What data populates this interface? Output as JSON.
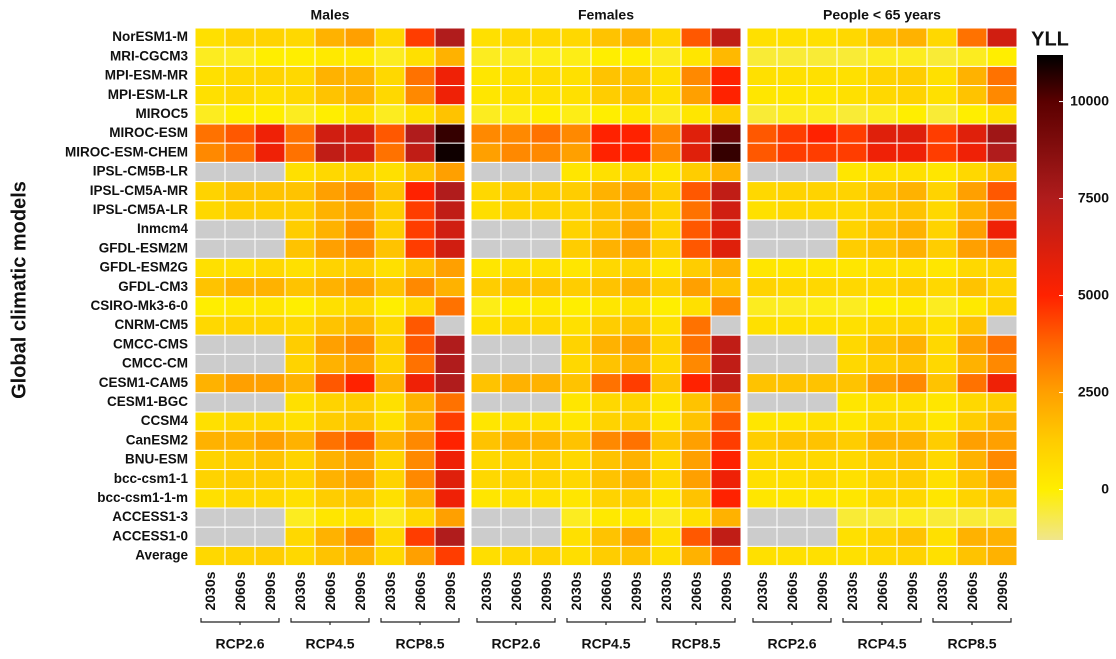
{
  "chart_data": {
    "type": "heatmap",
    "y_label": "Global climatic models",
    "rows": [
      "NorESM1-M",
      "MRI-CGCM3",
      "MPI-ESM-MR",
      "MPI-ESM-LR",
      "MIROC5",
      "MIROC-ESM",
      "MIROC-ESM-CHEM",
      "IPSL-CM5B-LR",
      "IPSL-CM5A-MR",
      "IPSL-CM5A-LR",
      "Inmcm4",
      "GFDL-ESM2M",
      "GFDL-ESM2G",
      "GFDL-CM3",
      "CSIRO-Mk3-6-0",
      "CNRM-CM5",
      "CMCC-CMS",
      "CMCC-CM",
      "CESM1-CAM5",
      "CESM1-BGC",
      "CCSM4",
      "CanESM2",
      "BNU-ESM",
      "bcc-csm1-1",
      "bcc-csm1-1-m",
      "ACCESS1-3",
      "ACCESS1-0",
      "Average"
    ],
    "colorbar_title": "YLL",
    "zlim": [
      -1300,
      11200
    ],
    "zticks": [
      0,
      2500,
      5000,
      7500,
      10000
    ],
    "missing_color": "#cccccc",
    "colorscale": [
      [
        -1300,
        "#f0e68c"
      ],
      [
        0,
        "#ffee00"
      ],
      [
        1250,
        "#ffcc00"
      ],
      [
        2500,
        "#ffa000"
      ],
      [
        3750,
        "#ff6600"
      ],
      [
        5000,
        "#ff2200"
      ],
      [
        7500,
        "#b01c1c"
      ],
      [
        10000,
        "#5a0000"
      ],
      [
        11200,
        "#000000"
      ]
    ],
    "panels": [
      {
        "title": "Males",
        "columns": [
          "2030s",
          "2060s",
          "2090s",
          "2030s",
          "2060s",
          "2090s",
          "2030s",
          "2060s",
          "2090s"
        ],
        "groups": [
          "RCP2.6",
          "RCP4.5",
          "RCP8.5"
        ],
        "values": [
          [
            500,
            1000,
            1000,
            800,
            2000,
            2500,
            800,
            4500,
            7500
          ],
          [
            -300,
            -300,
            0,
            0,
            200,
            200,
            -300,
            500,
            2000
          ],
          [
            500,
            800,
            1000,
            800,
            2000,
            2000,
            800,
            3500,
            5500
          ],
          [
            500,
            800,
            500,
            800,
            1500,
            2000,
            800,
            3000,
            5500
          ],
          [
            -300,
            0,
            0,
            -300,
            0,
            500,
            -300,
            500,
            1500
          ],
          [
            3500,
            4000,
            5500,
            3500,
            6500,
            6500,
            4000,
            7500,
            10500
          ],
          [
            3000,
            3500,
            5500,
            3500,
            7000,
            6500,
            3500,
            7000,
            11000
          ],
          [
            null,
            null,
            null,
            500,
            800,
            1000,
            500,
            1500,
            2500
          ],
          [
            1000,
            1500,
            1500,
            1500,
            2500,
            3000,
            1500,
            5000,
            7500
          ],
          [
            800,
            1200,
            1200,
            1200,
            2000,
            2500,
            1200,
            4500,
            7000
          ],
          [
            null,
            null,
            null,
            1200,
            2000,
            3000,
            1200,
            4500,
            6500
          ],
          [
            null,
            null,
            null,
            1500,
            2500,
            3000,
            1500,
            4500,
            6500
          ],
          [
            500,
            500,
            800,
            500,
            1000,
            1200,
            500,
            1500,
            2500
          ],
          [
            1500,
            2000,
            2000,
            1500,
            2000,
            2500,
            1500,
            3000,
            2000
          ],
          [
            0,
            200,
            300,
            0,
            500,
            800,
            0,
            800,
            3500
          ],
          [
            800,
            1000,
            1000,
            800,
            1500,
            2000,
            800,
            4000,
            null
          ],
          [
            null,
            null,
            null,
            1200,
            2500,
            3000,
            1200,
            4000,
            7500
          ],
          [
            null,
            null,
            null,
            1000,
            2000,
            2500,
            1000,
            3500,
            7500
          ],
          [
            2000,
            2500,
            2500,
            2000,
            4000,
            5000,
            2000,
            5500,
            7500
          ],
          [
            null,
            null,
            null,
            500,
            1000,
            1200,
            500,
            2000,
            3500
          ],
          [
            500,
            800,
            800,
            500,
            1200,
            1500,
            500,
            2000,
            4500
          ],
          [
            2000,
            2000,
            2500,
            2000,
            3500,
            4000,
            2000,
            3000,
            5000
          ],
          [
            1000,
            1200,
            1500,
            1000,
            2000,
            2500,
            1000,
            3000,
            5500
          ],
          [
            1000,
            1200,
            1200,
            1000,
            2000,
            2500,
            1000,
            3000,
            6000
          ],
          [
            500,
            800,
            800,
            500,
            1200,
            1500,
            500,
            2000,
            5500
          ],
          [
            null,
            null,
            null,
            -300,
            300,
            500,
            -300,
            800,
            2500
          ],
          [
            null,
            null,
            null,
            800,
            2000,
            3000,
            800,
            4500,
            7500
          ],
          [
            800,
            1000,
            1200,
            800,
            1500,
            2000,
            800,
            2500,
            4500
          ]
        ]
      },
      {
        "title": "Females",
        "columns": [
          "2030s",
          "2060s",
          "2090s",
          "2030s",
          "2060s",
          "2090s",
          "2030s",
          "2060s",
          "2090s"
        ],
        "groups": [
          "RCP2.6",
          "RCP4.5",
          "RCP8.5"
        ],
        "values": [
          [
            500,
            800,
            800,
            800,
            1500,
            2000,
            800,
            4000,
            7000
          ],
          [
            -300,
            -300,
            -200,
            -200,
            0,
            0,
            -300,
            300,
            1800
          ],
          [
            300,
            500,
            700,
            500,
            1500,
            1500,
            500,
            3000,
            5000
          ],
          [
            300,
            500,
            500,
            500,
            1200,
            1500,
            500,
            2500,
            5000
          ],
          [
            -300,
            -200,
            0,
            -200,
            0,
            300,
            -300,
            300,
            1200
          ],
          [
            3000,
            3000,
            3500,
            3000,
            5000,
            5000,
            3000,
            6000,
            9500
          ],
          [
            2500,
            3000,
            3000,
            2500,
            5000,
            5000,
            3000,
            6000,
            10500
          ],
          [
            null,
            null,
            null,
            300,
            500,
            800,
            300,
            1200,
            2000
          ],
          [
            800,
            1200,
            1200,
            1200,
            2000,
            2500,
            1200,
            4000,
            7000
          ],
          [
            600,
            1000,
            1000,
            1000,
            1500,
            2000,
            1000,
            3500,
            6500
          ],
          [
            null,
            null,
            null,
            1000,
            1500,
            2500,
            1000,
            4000,
            6000
          ],
          [
            null,
            null,
            null,
            1200,
            2000,
            2500,
            1200,
            4000,
            6000
          ],
          [
            300,
            500,
            500,
            300,
            800,
            1000,
            300,
            1200,
            2000
          ],
          [
            1200,
            1500,
            1500,
            1200,
            1500,
            2000,
            1200,
            2500,
            1500
          ],
          [
            -200,
            0,
            200,
            0,
            300,
            500,
            0,
            500,
            3000
          ],
          [
            500,
            800,
            800,
            500,
            1200,
            1500,
            500,
            3500,
            null
          ],
          [
            null,
            null,
            null,
            1000,
            2000,
            2500,
            1000,
            3500,
            7000
          ],
          [
            null,
            null,
            null,
            800,
            1500,
            2000,
            800,
            3000,
            7000
          ],
          [
            1500,
            2000,
            2000,
            1500,
            3500,
            4500,
            1500,
            5000,
            7000
          ],
          [
            null,
            null,
            null,
            300,
            800,
            1000,
            300,
            1500,
            3000
          ],
          [
            300,
            500,
            500,
            300,
            1000,
            1200,
            300,
            1500,
            4000
          ],
          [
            1500,
            2000,
            2000,
            1500,
            3000,
            3500,
            1500,
            2500,
            4500
          ],
          [
            800,
            1000,
            1200,
            800,
            1500,
            2000,
            800,
            2500,
            5000
          ],
          [
            800,
            1000,
            1000,
            800,
            1500,
            2000,
            800,
            2500,
            5500
          ],
          [
            300,
            500,
            500,
            300,
            1000,
            1200,
            300,
            1500,
            5000
          ],
          [
            null,
            null,
            null,
            -300,
            200,
            300,
            -300,
            500,
            2000
          ],
          [
            null,
            null,
            null,
            500,
            1500,
            2500,
            500,
            4000,
            7000
          ],
          [
            600,
            800,
            1000,
            600,
            1200,
            1500,
            600,
            2000,
            4000
          ]
        ]
      },
      {
        "title": "People < 65 years",
        "columns": [
          "2030s",
          "2060s",
          "2090s",
          "2030s",
          "2060s",
          "2090s",
          "2030s",
          "2060s",
          "2090s"
        ],
        "groups": [
          "RCP2.6",
          "RCP4.5",
          "RCP8.5"
        ],
        "values": [
          [
            500,
            500,
            500,
            800,
            1500,
            2000,
            800,
            3500,
            6500
          ],
          [
            -500,
            -500,
            -500,
            -500,
            -300,
            -300,
            -500,
            -300,
            0
          ],
          [
            500,
            500,
            500,
            500,
            1000,
            1200,
            500,
            2000,
            3500
          ],
          [
            300,
            300,
            300,
            500,
            800,
            1000,
            500,
            1500,
            3000
          ],
          [
            -500,
            -300,
            -300,
            -500,
            -300,
            0,
            -500,
            0,
            500
          ],
          [
            4000,
            4500,
            5000,
            4500,
            6000,
            6000,
            4500,
            6000,
            8000
          ],
          [
            4000,
            4500,
            4500,
            4500,
            5500,
            5500,
            4500,
            5500,
            7500
          ],
          [
            null,
            null,
            null,
            300,
            500,
            500,
            300,
            800,
            1500
          ],
          [
            800,
            1000,
            1000,
            1000,
            1500,
            2000,
            1000,
            2500,
            4000
          ],
          [
            500,
            800,
            800,
            800,
            1200,
            1500,
            800,
            2000,
            3000
          ],
          [
            null,
            null,
            null,
            1000,
            1500,
            2000,
            1000,
            2500,
            5500
          ],
          [
            null,
            null,
            null,
            1200,
            1500,
            2000,
            1200,
            2500,
            3000
          ],
          [
            300,
            300,
            300,
            300,
            500,
            500,
            300,
            800,
            1000
          ],
          [
            1000,
            800,
            800,
            800,
            800,
            1200,
            800,
            1500,
            1000
          ],
          [
            -300,
            -300,
            -200,
            -300,
            0,
            200,
            -300,
            200,
            1000
          ],
          [
            500,
            500,
            500,
            500,
            800,
            1000,
            500,
            1500,
            null
          ],
          [
            null,
            null,
            null,
            800,
            1500,
            2000,
            800,
            2500,
            3500
          ],
          [
            null,
            null,
            null,
            800,
            1200,
            1500,
            800,
            2000,
            3000
          ],
          [
            1500,
            1500,
            1500,
            1500,
            2500,
            3000,
            1500,
            3500,
            5500
          ],
          [
            null,
            null,
            null,
            300,
            500,
            500,
            300,
            800,
            1200
          ],
          [
            300,
            300,
            500,
            300,
            800,
            800,
            300,
            1200,
            2000
          ],
          [
            1200,
            1500,
            1500,
            1200,
            2000,
            2000,
            1200,
            2500,
            2500
          ],
          [
            800,
            800,
            800,
            800,
            1200,
            1500,
            800,
            2000,
            3000
          ],
          [
            500,
            500,
            800,
            500,
            1000,
            1200,
            500,
            1500,
            2500
          ],
          [
            300,
            300,
            300,
            300,
            800,
            800,
            300,
            1000,
            1500
          ],
          [
            null,
            null,
            null,
            -500,
            -500,
            -300,
            -500,
            -500,
            -500
          ],
          [
            null,
            null,
            null,
            500,
            1000,
            1500,
            500,
            2000,
            2000
          ],
          [
            500,
            500,
            500,
            500,
            800,
            1000,
            500,
            1500,
            2000
          ]
        ]
      }
    ]
  }
}
